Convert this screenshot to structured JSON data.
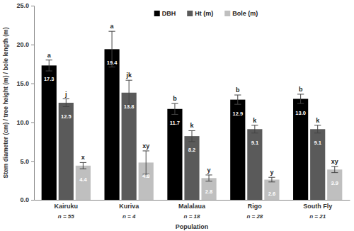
{
  "chart_data": {
    "type": "bar",
    "x_label": "Population",
    "y_label": "Stem diameter (cm) / tree height (m) / bole length (m)",
    "categories": [
      "Kairuku",
      "Kuriva",
      "Malalaua",
      "Rigo",
      "South Fly"
    ],
    "n_labels": [
      "n = 55",
      "n = 4",
      "n = 18",
      "n = 28",
      "n = 21"
    ],
    "series": [
      {
        "name": "DBH",
        "color": "#000000",
        "values": [
          17.3,
          19.4,
          11.7,
          12.9,
          13.0
        ],
        "value_labels": [
          "17.3",
          "19.4",
          "11.7",
          "12.9",
          "13.0"
        ],
        "errors": [
          0.7,
          2.3,
          0.7,
          0.6,
          0.6
        ],
        "letters": [
          "a",
          "a",
          "b",
          "b",
          "b"
        ]
      },
      {
        "name": "Ht (m)",
        "color": "#5a5a5a",
        "values": [
          12.5,
          13.8,
          8.2,
          9.1,
          9.1
        ],
        "value_labels": [
          "12.5",
          "13.8",
          "8.2",
          "9.1",
          "9.1"
        ],
        "errors": [
          0.5,
          1.6,
          0.7,
          0.5,
          0.5
        ],
        "letters": [
          "j",
          "jk",
          "k",
          "k",
          "k"
        ]
      },
      {
        "name": "Bole (m)",
        "color": "#bfbfbf",
        "values": [
          4.4,
          4.8,
          2.8,
          2.6,
          3.9
        ],
        "value_labels": [
          "4.4",
          "4.8",
          "2.8",
          "2.6",
          "3.9"
        ],
        "errors": [
          0.4,
          1.5,
          0.4,
          0.3,
          0.4
        ],
        "letters": [
          "x",
          "xy",
          "y",
          "y",
          "xy"
        ]
      }
    ],
    "ylim": [
      0,
      25
    ],
    "yticks": [
      {
        "value": 0,
        "label": "0.0"
      },
      {
        "value": 5,
        "label": "5.0"
      },
      {
        "value": 10,
        "label": "10.0"
      },
      {
        "value": 15,
        "label": "15.0"
      },
      {
        "value": 20,
        "label": "20.0"
      },
      {
        "value": 25,
        "label": "25.0"
      }
    ],
    "grid": false,
    "legend": "top",
    "data_labels": true
  }
}
